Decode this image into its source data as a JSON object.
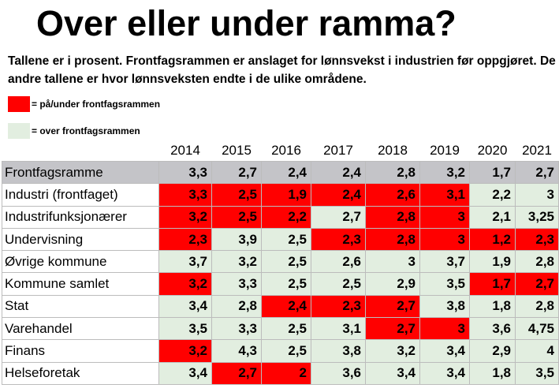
{
  "title": "Over eller under ramma?",
  "subtitle": "Tallene er i prosent. Frontfagsrammen er anslaget for lønnsvekst i industrien før oppgjøret. De andre tallene er hvor lønnsveksten endte i de ulike områdene.",
  "legend": [
    {
      "label": "= på/under frontfagsrammen",
      "color": "#ff0000"
    },
    {
      "label": "= over frontfagsrammen",
      "color": "#e2eee0"
    }
  ],
  "colors": {
    "under": "#ff0000",
    "over": "#e2eee0",
    "reference": "#c4c4c8"
  },
  "chart_data": {
    "type": "table",
    "title": "Over eller under ramma?",
    "columns": [
      "2014",
      "2015",
      "2016",
      "2017",
      "2018",
      "2019",
      "2020",
      "2021"
    ],
    "reference_row": {
      "label": "Frontfagsramme",
      "values": [
        "3,3",
        "2,7",
        "2,4",
        "2,4",
        "2,8",
        "3,2",
        "1,7",
        "2,7"
      ]
    },
    "rows": [
      {
        "label": "Industri (frontfaget)",
        "values": [
          "3,3",
          "2,5",
          "1,9",
          "2,4",
          "2,6",
          "3,1",
          "2,2",
          "3"
        ],
        "status": [
          "u",
          "u",
          "u",
          "u",
          "u",
          "u",
          "o",
          "o"
        ]
      },
      {
        "label": "Industrifunksjonærer",
        "values": [
          "3,2",
          "2,5",
          "2,2",
          "2,7",
          "2,8",
          "3",
          "2,1",
          "3,25"
        ],
        "status": [
          "u",
          "u",
          "u",
          "o",
          "u",
          "u",
          "o",
          "o"
        ]
      },
      {
        "label": "Undervisning",
        "values": [
          "2,3",
          "3,9",
          "2,5",
          "2,3",
          "2,8",
          "3",
          "1,2",
          "2,3"
        ],
        "status": [
          "u",
          "o",
          "o",
          "u",
          "u",
          "u",
          "u",
          "u"
        ]
      },
      {
        "label": "Øvrige kommune",
        "values": [
          "3,7",
          "3,2",
          "2,5",
          "2,6",
          "3",
          "3,7",
          "1,9",
          "2,8"
        ],
        "status": [
          "o",
          "o",
          "o",
          "o",
          "o",
          "o",
          "o",
          "o"
        ]
      },
      {
        "label": "Kommune samlet",
        "values": [
          "3,2",
          "3,3",
          "2,5",
          "2,5",
          "2,9",
          "3,5",
          "1,7",
          "2,7"
        ],
        "status": [
          "u",
          "o",
          "o",
          "o",
          "o",
          "o",
          "u",
          "u"
        ]
      },
      {
        "label": "Stat",
        "values": [
          "3,4",
          "2,8",
          "2,4",
          "2,3",
          "2,7",
          "3,8",
          "1,8",
          "2,8"
        ],
        "status": [
          "o",
          "o",
          "u",
          "u",
          "u",
          "o",
          "o",
          "o"
        ]
      },
      {
        "label": "Varehandel",
        "values": [
          "3,5",
          "3,3",
          "2,5",
          "3,1",
          "2,7",
          "3",
          "3,6",
          "4,75"
        ],
        "status": [
          "o",
          "o",
          "o",
          "o",
          "u",
          "u",
          "o",
          "o"
        ]
      },
      {
        "label": "Finans",
        "values": [
          "3,2",
          "4,3",
          "2,5",
          "3,8",
          "3,2",
          "3,4",
          "2,9",
          "4"
        ],
        "status": [
          "u",
          "o",
          "o",
          "o",
          "o",
          "o",
          "o",
          "o"
        ]
      },
      {
        "label": "Helseforetak",
        "values": [
          "3,4",
          "2,7",
          "2",
          "3,6",
          "3,4",
          "3,4",
          "1,8",
          "3,5"
        ],
        "status": [
          "o",
          "u",
          "u",
          "o",
          "o",
          "o",
          "o",
          "o"
        ]
      }
    ]
  }
}
